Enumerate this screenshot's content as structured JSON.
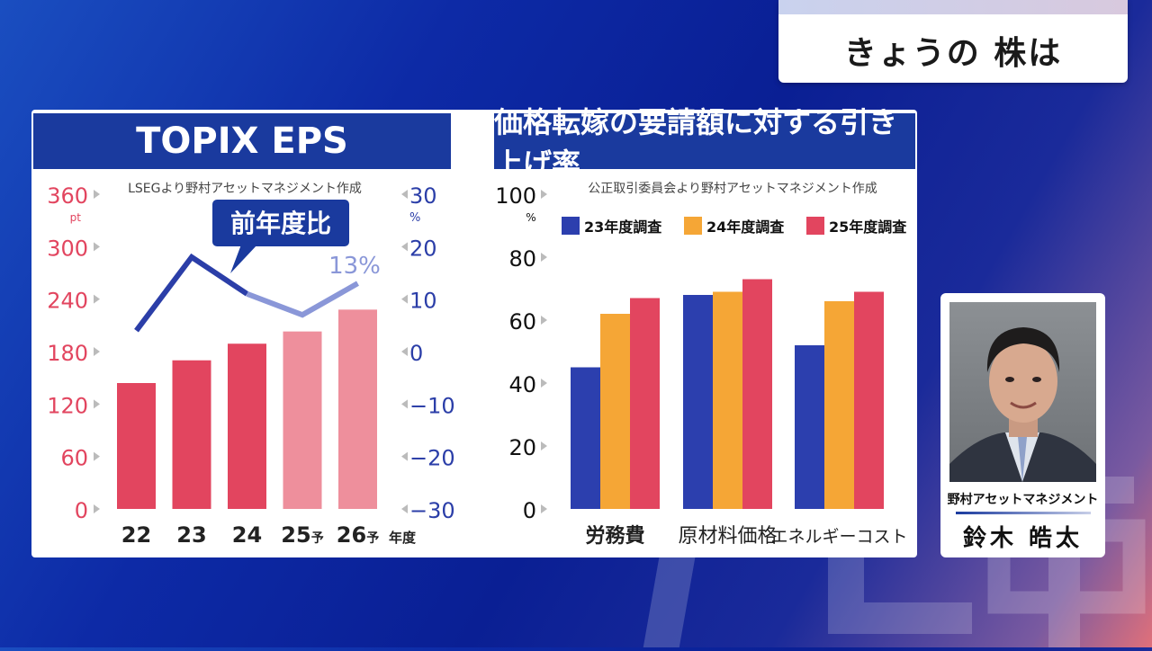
{
  "header": {
    "title": "きょうの 株は"
  },
  "watermark": "テレ東",
  "colors": {
    "primary_bar": "#e2455f",
    "forecast_bar": "#ee8f9c",
    "line": "#2b3ea8",
    "line_forecast": "#8a97d8",
    "s23": "#2c3fae",
    "s24": "#f5a636",
    "s25": "#e2455f",
    "header_bg": "#1a3a9e"
  },
  "chart_data": [
    {
      "type": "bar",
      "title": "TOPIX EPS",
      "source": "LSEGより野村アセットマネジメント作成",
      "categories": [
        "22",
        "23",
        "24",
        "25",
        "26"
      ],
      "forecast_suffix": "予",
      "forecast_from_index": 3,
      "xlabel": "年度",
      "values": [
        144,
        170,
        189,
        203,
        228
      ],
      "ylabel": "pt",
      "ylim": [
        0,
        360
      ],
      "yticks": [
        "360",
        "300",
        "240",
        "180",
        "120",
        "60",
        "0"
      ],
      "y2label": "%",
      "y2lim": [
        -30,
        30
      ],
      "y2ticks": [
        "30",
        "20",
        "10",
        "0",
        "−10",
        "−20",
        "−30"
      ],
      "line_series": {
        "name": "前年度比",
        "values": [
          4,
          18,
          11,
          7,
          13
        ],
        "end_label": "13%"
      }
    },
    {
      "type": "bar",
      "title": "価格転嫁の要請額に対する引き上げ率",
      "source": "公正取引委員会より野村アセットマネジメント作成",
      "categories": [
        "労務費",
        "原材料価格",
        "エネルギーコスト"
      ],
      "ylabel": "%",
      "ylim": [
        0,
        100
      ],
      "yticks": [
        "100",
        "80",
        "60",
        "40",
        "20",
        "0"
      ],
      "series": [
        {
          "name": "23年度調査",
          "values": [
            45,
            68,
            52
          ]
        },
        {
          "name": "24年度調査",
          "values": [
            62,
            69,
            66
          ]
        },
        {
          "name": "25年度調査",
          "values": [
            67,
            73,
            69
          ]
        }
      ]
    }
  ],
  "person": {
    "org": "野村アセットマネジメント",
    "name": "鈴木 皓太"
  }
}
